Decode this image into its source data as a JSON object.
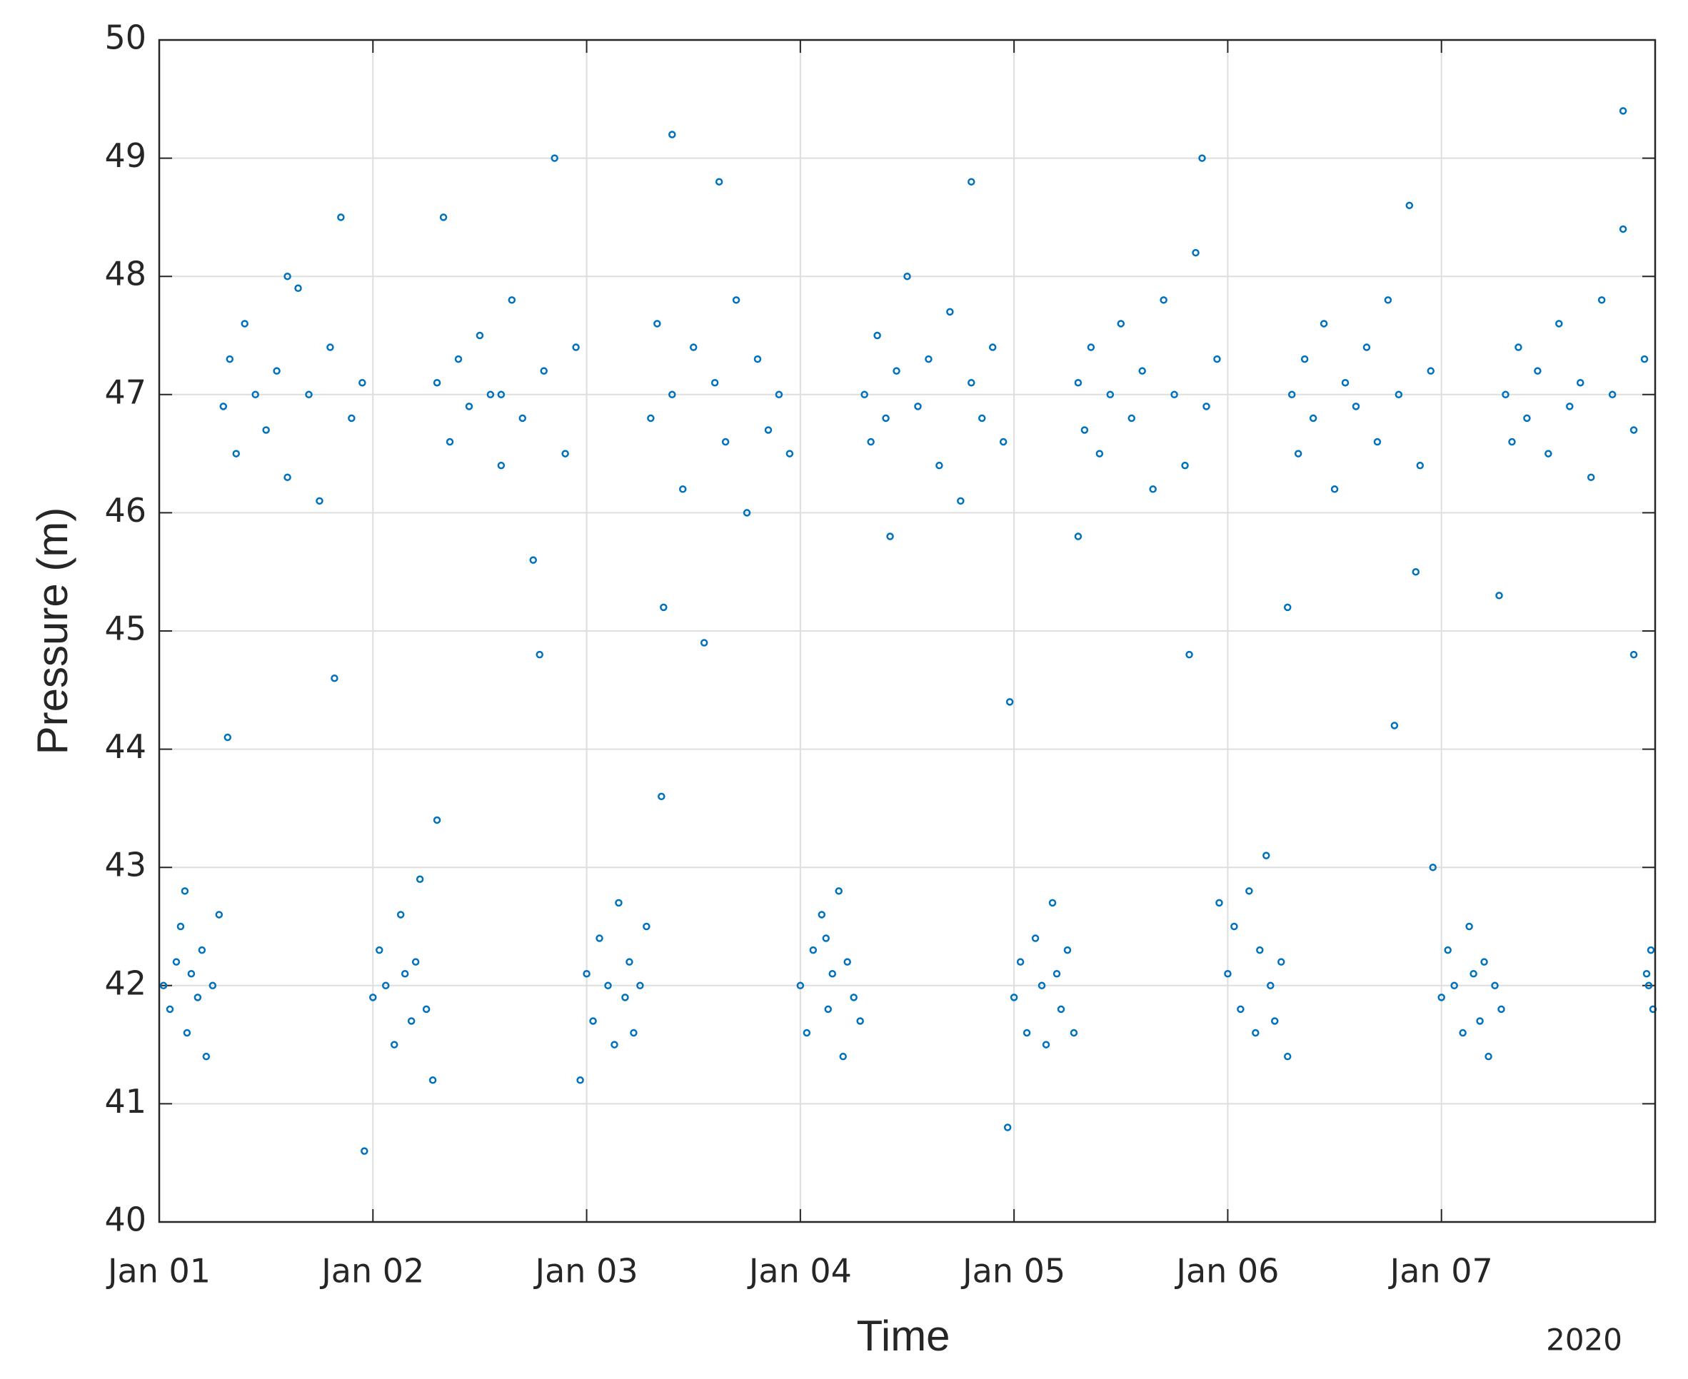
{
  "chart_data": {
    "type": "scatter",
    "xlabel": "Time",
    "ylabel": "Pressure (m)",
    "year_label": "2020",
    "color": "#0072bd",
    "grid": true,
    "xlim": [
      0,
      7
    ],
    "ylim": [
      40,
      50
    ],
    "xticks": [
      {
        "value": 0,
        "label": "Jan 01"
      },
      {
        "value": 1,
        "label": "Jan 02"
      },
      {
        "value": 2,
        "label": "Jan 03"
      },
      {
        "value": 3,
        "label": "Jan 04"
      },
      {
        "value": 4,
        "label": "Jan 05"
      },
      {
        "value": 5,
        "label": "Jan 06"
      },
      {
        "value": 6,
        "label": "Jan 07"
      }
    ],
    "yticks": [
      40,
      41,
      42,
      43,
      44,
      45,
      46,
      47,
      48,
      49,
      50
    ],
    "x": [
      0.02,
      0.05,
      0.08,
      0.1,
      0.13,
      0.15,
      0.18,
      0.2,
      0.22,
      0.25,
      0.28,
      0.12,
      0.3,
      0.33,
      0.36,
      0.4,
      0.45,
      0.5,
      0.55,
      0.6,
      0.65,
      0.7,
      0.75,
      0.8,
      0.85,
      0.9,
      0.95,
      0.32,
      0.82,
      0.6,
      1.0,
      1.03,
      1.06,
      1.1,
      1.13,
      1.15,
      1.18,
      1.2,
      1.22,
      1.25,
      1.28,
      0.96,
      1.3,
      1.33,
      1.36,
      1.4,
      1.45,
      1.5,
      1.55,
      1.6,
      1.65,
      1.7,
      1.75,
      1.8,
      1.85,
      1.9,
      1.95,
      1.3,
      1.78,
      1.6,
      2.0,
      2.03,
      2.06,
      2.1,
      2.13,
      2.15,
      2.18,
      2.2,
      2.22,
      2.25,
      2.28,
      1.97,
      2.3,
      2.33,
      2.36,
      2.4,
      2.45,
      2.5,
      2.55,
      2.6,
      2.65,
      2.7,
      2.75,
      2.8,
      2.85,
      2.9,
      2.95,
      2.4,
      2.62,
      2.35,
      3.0,
      3.03,
      3.06,
      3.1,
      3.13,
      3.15,
      3.18,
      3.2,
      3.22,
      3.25,
      3.28,
      3.12,
      3.3,
      3.33,
      3.36,
      3.4,
      3.45,
      3.5,
      3.55,
      3.6,
      3.65,
      3.7,
      3.75,
      3.8,
      3.85,
      3.9,
      3.95,
      3.42,
      3.8,
      3.98,
      4.0,
      4.03,
      4.06,
      4.1,
      4.13,
      4.15,
      4.18,
      4.2,
      4.22,
      4.25,
      4.28,
      3.97,
      4.3,
      4.33,
      4.36,
      4.4,
      4.45,
      4.5,
      4.55,
      4.6,
      4.65,
      4.7,
      4.75,
      4.8,
      4.85,
      4.9,
      4.95,
      4.3,
      4.82,
      4.88,
      5.0,
      5.03,
      5.06,
      5.1,
      5.13,
      5.15,
      5.18,
      5.2,
      5.22,
      5.25,
      5.28,
      4.96,
      5.3,
      5.33,
      5.36,
      5.4,
      5.45,
      5.5,
      5.55,
      5.6,
      5.65,
      5.7,
      5.75,
      5.8,
      5.85,
      5.9,
      5.95,
      5.28,
      5.78,
      5.88,
      6.0,
      6.03,
      6.06,
      6.1,
      6.13,
      6.15,
      6.18,
      6.2,
      6.22,
      6.25,
      6.28,
      5.96,
      6.3,
      6.33,
      6.36,
      6.4,
      6.45,
      6.5,
      6.55,
      6.6,
      6.65,
      6.7,
      6.75,
      6.8,
      6.85,
      6.9,
      6.95,
      6.27,
      6.85,
      6.9,
      6.97,
      6.98,
      6.99,
      6.96
    ],
    "y": [
      42.0,
      41.8,
      42.2,
      42.5,
      41.6,
      42.1,
      41.9,
      42.3,
      41.4,
      42.0,
      42.6,
      42.8,
      46.9,
      47.3,
      46.5,
      47.6,
      47.0,
      46.7,
      47.2,
      46.3,
      47.9,
      47.0,
      46.1,
      47.4,
      48.5,
      46.8,
      47.1,
      44.1,
      44.6,
      48.0,
      41.9,
      42.3,
      42.0,
      41.5,
      42.6,
      42.1,
      41.7,
      42.2,
      42.9,
      41.8,
      41.2,
      40.6,
      47.1,
      48.5,
      46.6,
      47.3,
      46.9,
      47.5,
      47.0,
      46.4,
      47.8,
      46.8,
      45.6,
      47.2,
      49.0,
      46.5,
      47.4,
      43.4,
      44.8,
      47.0,
      42.1,
      41.7,
      42.4,
      42.0,
      41.5,
      42.7,
      41.9,
      42.2,
      41.6,
      42.0,
      42.5,
      41.2,
      46.8,
      47.6,
      45.2,
      47.0,
      46.2,
      47.4,
      44.9,
      47.1,
      46.6,
      47.8,
      46.0,
      47.3,
      46.7,
      47.0,
      46.5,
      49.2,
      48.8,
      43.6,
      42.0,
      41.6,
      42.3,
      42.6,
      41.8,
      42.1,
      42.8,
      41.4,
      42.2,
      41.9,
      41.7,
      42.4,
      47.0,
      46.6,
      47.5,
      46.8,
      47.2,
      48.0,
      46.9,
      47.3,
      46.4,
      47.7,
      46.1,
      47.1,
      46.8,
      47.4,
      46.6,
      45.8,
      48.8,
      44.4,
      41.9,
      42.2,
      41.6,
      42.4,
      42.0,
      41.5,
      42.7,
      42.1,
      41.8,
      42.3,
      41.6,
      40.8,
      47.1,
      46.7,
      47.4,
      46.5,
      47.0,
      47.6,
      46.8,
      47.2,
      46.2,
      47.8,
      47.0,
      46.4,
      48.2,
      46.9,
      47.3,
      45.8,
      44.8,
      49.0,
      42.1,
      42.5,
      41.8,
      42.8,
      41.6,
      42.3,
      43.1,
      42.0,
      41.7,
      42.2,
      41.4,
      42.7,
      47.0,
      46.5,
      47.3,
      46.8,
      47.6,
      46.2,
      47.1,
      46.9,
      47.4,
      46.6,
      47.8,
      47.0,
      48.6,
      46.4,
      47.2,
      45.2,
      44.2,
      45.5,
      41.9,
      42.3,
      42.0,
      41.6,
      42.5,
      42.1,
      41.7,
      42.2,
      41.4,
      42.0,
      41.8,
      43.0,
      47.0,
      46.6,
      47.4,
      46.8,
      47.2,
      46.5,
      47.6,
      46.9,
      47.1,
      46.3,
      47.8,
      47.0,
      48.4,
      46.7,
      47.3,
      45.3,
      49.4,
      44.8,
      42.0,
      42.3,
      41.8,
      42.1
    ]
  }
}
